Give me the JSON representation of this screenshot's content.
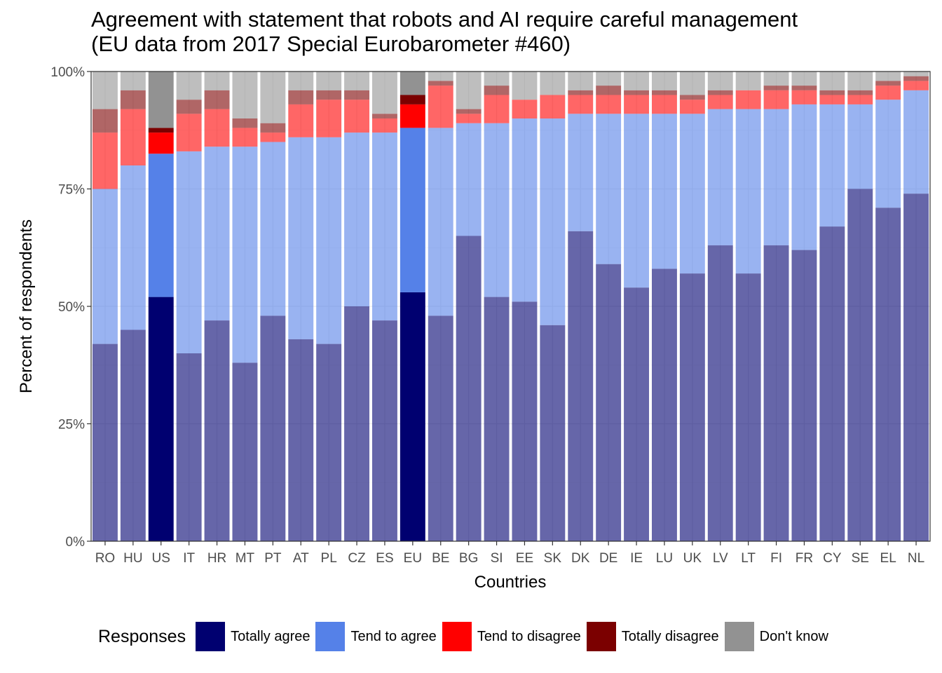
{
  "chart_data": {
    "type": "bar",
    "stacked": true,
    "title": "Agreement with statement that robots and AI require careful management\n(EU data from 2017 Special Eurobarometer #460)",
    "xlabel": "Countries",
    "ylabel": "Percent of respondents",
    "ylim": [
      0,
      100
    ],
    "yticks": [
      "0%",
      "25%",
      "50%",
      "75%",
      "100%"
    ],
    "legend_title": "Responses",
    "legend_position": "bottom",
    "highlighted_categories": [
      "US",
      "EU"
    ],
    "categories": [
      "RO",
      "HU",
      "US",
      "IT",
      "HR",
      "MT",
      "PT",
      "AT",
      "PL",
      "CZ",
      "ES",
      "EU",
      "BE",
      "BG",
      "SI",
      "EE",
      "SK",
      "DK",
      "DE",
      "IE",
      "LU",
      "UK",
      "LV",
      "LT",
      "FI",
      "FR",
      "CY",
      "SE",
      "EL",
      "NL"
    ],
    "series": [
      {
        "name": "Totally agree",
        "color": "#000070",
        "values": [
          42,
          45,
          52,
          40,
          47,
          38,
          48,
          43,
          42,
          50,
          47,
          53,
          48,
          65,
          52,
          51,
          46,
          66,
          59,
          54,
          58,
          57,
          63,
          57,
          63,
          62,
          67,
          75,
          71,
          74
        ]
      },
      {
        "name": "Tend to agree",
        "color": "#5581E8",
        "values": [
          33,
          35,
          30.5,
          43,
          37,
          46,
          37,
          43,
          44,
          37,
          40,
          35,
          40,
          24,
          37,
          39,
          44,
          25,
          32,
          37,
          33,
          34,
          29,
          35,
          29,
          31,
          26,
          18,
          23,
          22
        ]
      },
      {
        "name": "Tend to disagree",
        "color": "#FF0000",
        "values": [
          12,
          12,
          4.5,
          8,
          8,
          4,
          2,
          7,
          8,
          7,
          3,
          5,
          9,
          2,
          6,
          4,
          5,
          4,
          4,
          4,
          4,
          3,
          3,
          4,
          4,
          3,
          2,
          2,
          3,
          2
        ]
      },
      {
        "name": "Totally disagree",
        "color": "#7B0000",
        "values": [
          5,
          4,
          1,
          3,
          4,
          2,
          2,
          3,
          2,
          2,
          1,
          2,
          1,
          1,
          2,
          0,
          0,
          1,
          2,
          1,
          1,
          1,
          1,
          0,
          1,
          1,
          1,
          1,
          1,
          1
        ]
      },
      {
        "name": "Don't know",
        "color": "#929292",
        "values": [
          8,
          4,
          12,
          6,
          4,
          10,
          11,
          4,
          4,
          4,
          9,
          5,
          2,
          8,
          3,
          6,
          5,
          4,
          3,
          4,
          4,
          5,
          4,
          4,
          3,
          3,
          4,
          4,
          2,
          1
        ]
      }
    ]
  }
}
